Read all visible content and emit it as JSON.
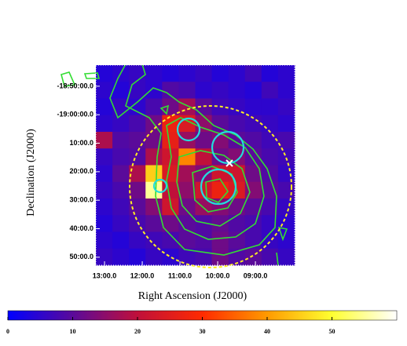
{
  "chart_data": {
    "type": "heatmap",
    "x_label": "Right Ascension (J2000)",
    "y_label": "Declination (J2000)",
    "xlim": [
      13.23,
      7.96
    ],
    "ylim": [
      -1122.6,
      -1192.8
    ],
    "xticks": [
      {
        "value": 13,
        "label": "13:00.0"
      },
      {
        "value": 12,
        "label": "12:00.0"
      },
      {
        "value": 11,
        "label": "11:00.0"
      },
      {
        "value": 10,
        "label": "10:00.0"
      },
      {
        "value": 9,
        "label": "09:00.0"
      }
    ],
    "yticks": [
      {
        "value": -1130,
        "label": "-18:50:00.0"
      },
      {
        "value": -1140,
        "label": "-19:00:00.0"
      },
      {
        "value": -1150,
        "label": "10:00.0"
      },
      {
        "value": -1160,
        "label": "20:00.0"
      },
      {
        "value": -1170,
        "label": "30:00.0"
      },
      {
        "value": -1180,
        "label": "40:00.0"
      },
      {
        "value": -1190,
        "label": "50:00.0"
      }
    ],
    "z": [
      [
        4,
        5,
        6,
        5,
        4,
        5,
        6,
        4,
        5,
        7,
        4,
        5
      ],
      [
        5,
        4,
        6,
        5,
        9,
        8,
        5,
        6,
        5,
        4,
        7,
        5
      ],
      [
        4,
        6,
        5,
        8,
        12,
        17,
        10,
        7,
        6,
        5,
        5,
        6
      ],
      [
        5,
        6,
        8,
        12,
        27,
        24,
        15,
        10,
        8,
        7,
        6,
        5
      ],
      [
        18,
        9,
        10,
        12,
        26,
        16,
        12,
        14,
        10,
        9,
        7,
        8
      ],
      [
        6,
        8,
        9,
        18,
        22,
        38,
        20,
        12,
        14,
        10,
        8,
        7
      ],
      [
        5,
        10,
        18,
        45,
        24,
        17,
        14,
        22,
        22,
        12,
        9,
        6
      ],
      [
        6,
        8,
        12,
        55,
        20,
        15,
        22,
        27,
        24,
        14,
        10,
        8
      ],
      [
        5,
        7,
        10,
        14,
        22,
        12,
        16,
        14,
        12,
        10,
        8,
        6
      ],
      [
        4,
        6,
        8,
        10,
        12,
        10,
        9,
        11,
        9,
        8,
        6,
        5
      ],
      [
        5,
        4,
        6,
        7,
        8,
        10,
        9,
        12,
        10,
        8,
        6,
        5
      ],
      [
        6,
        5,
        4,
        6,
        5,
        7,
        8,
        12,
        9,
        10,
        8,
        6
      ]
    ],
    "clim": [
      0,
      60
    ],
    "colormap": [
      "#0000ff",
      "#5a0a9a",
      "#c0103a",
      "#ff2a00",
      "#ff9a00",
      "#ffff30",
      "#ffffff"
    ],
    "colorbar_ticks": [
      0,
      10,
      20,
      30,
      40,
      50
    ]
  }
}
